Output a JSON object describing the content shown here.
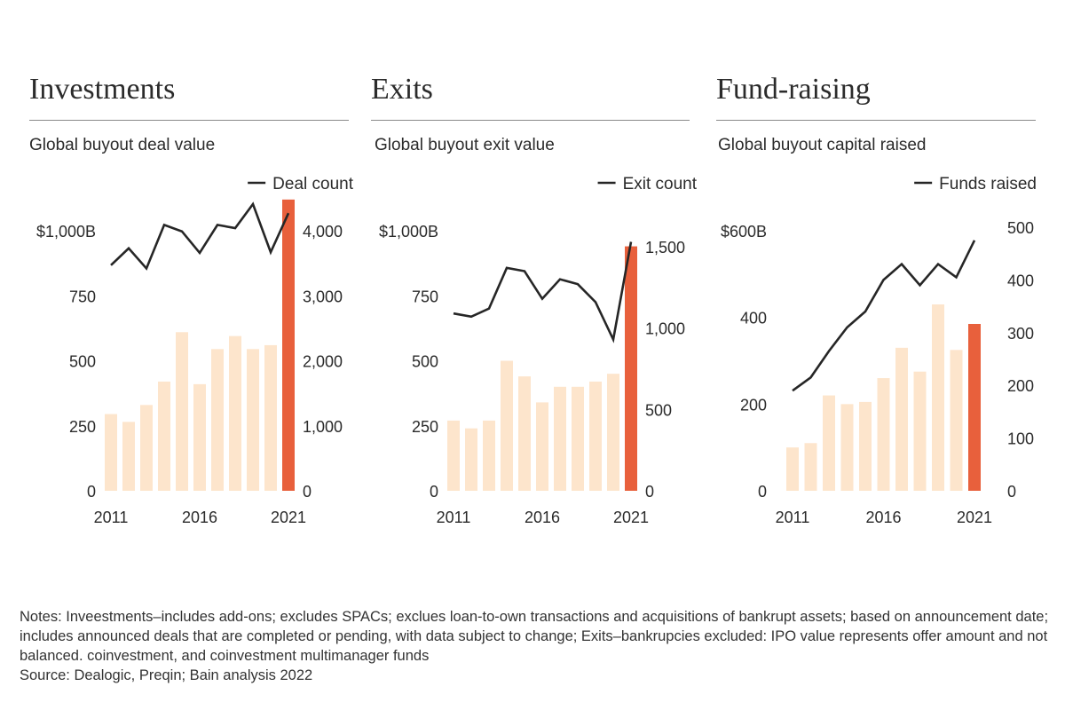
{
  "colors": {
    "bar": "#fde5cc",
    "bar_highlight": "#e8603c",
    "line": "#262626",
    "text": "#2b2b2b"
  },
  "notes": {
    "text": "Notes: Inveestments–includes add-ons; excludes SPACs; exclues loan-to-own transactions and acquisitions of bankrupt assets; based on announcement date; includes announced deals that are completed or pending, with data subject to change; Exits–bankrupcies excluded: IPO value represents offer amount and not balanced. coinvestment, and coinvestment multimanager funds",
    "source": "Source: Dealogic, Preqin; Bain analysis 2022"
  },
  "chart_data": [
    {
      "type": "bar",
      "title": "Investments",
      "subtitle": "Global buyout deal value",
      "legend_label": "Deal count",
      "years": [
        2011,
        2012,
        2013,
        2014,
        2015,
        2016,
        2017,
        2018,
        2019,
        2020,
        2021
      ],
      "x_tick_labels": [
        "2011",
        "2016",
        "2021"
      ],
      "left_axis": {
        "ylim": [
          0,
          1000
        ],
        "ticks": [
          0,
          250,
          500,
          750,
          1000
        ],
        "tick_labels": [
          "0",
          "250",
          "500",
          "750",
          "$1,000B"
        ]
      },
      "right_axis": {
        "ylim": [
          0,
          4000
        ],
        "ticks": [
          0,
          1000,
          2000,
          3000,
          4000
        ],
        "tick_labels": [
          "0",
          "1,000",
          "2,000",
          "3,000",
          "4,000"
        ]
      },
      "series": [
        {
          "name": "Global buyout deal value",
          "type": "bar",
          "axis": "left",
          "values": [
            295,
            265,
            330,
            420,
            610,
            410,
            545,
            595,
            545,
            560,
            1120
          ],
          "highlight_last": true
        },
        {
          "name": "Deal count",
          "type": "line",
          "axis": "right",
          "values": [
            3470,
            3730,
            3420,
            4090,
            3990,
            3660,
            4090,
            4040,
            4410,
            3670,
            4270
          ]
        }
      ]
    },
    {
      "type": "bar",
      "title": "Exits",
      "subtitle": "Global buyout exit value",
      "legend_label": "Exit count",
      "years": [
        2011,
        2012,
        2013,
        2014,
        2015,
        2016,
        2017,
        2018,
        2019,
        2020,
        2021
      ],
      "x_tick_labels": [
        "2011",
        "2016",
        "2021"
      ],
      "left_axis": {
        "ylim": [
          0,
          1000
        ],
        "ticks": [
          0,
          250,
          500,
          750,
          1000
        ],
        "tick_labels": [
          "0",
          "250",
          "500",
          "750",
          "$1,000B"
        ]
      },
      "right_axis": {
        "ylim": [
          0,
          1500
        ],
        "ticks": [
          0,
          500,
          1000,
          1500
        ],
        "tick_labels": [
          "0",
          "500",
          "1,000",
          "1,500"
        ]
      },
      "series": [
        {
          "name": "Global buyout exit value",
          "type": "bar",
          "axis": "left",
          "values": [
            270,
            240,
            270,
            500,
            440,
            340,
            400,
            400,
            420,
            450,
            940
          ],
          "highlight_last": true
        },
        {
          "name": "Exit count",
          "type": "line",
          "axis": "right",
          "values": [
            1090,
            1070,
            1120,
            1370,
            1350,
            1180,
            1300,
            1270,
            1160,
            930,
            1530
          ]
        }
      ]
    },
    {
      "type": "bar",
      "title": "Fund-raising",
      "subtitle": "Global buyout capital raised",
      "legend_label": "Funds raised",
      "years": [
        2011,
        2012,
        2013,
        2014,
        2015,
        2016,
        2017,
        2018,
        2019,
        2020,
        2021
      ],
      "x_tick_labels": [
        "2011",
        "2016",
        "2021"
      ],
      "left_axis": {
        "ylim": [
          0,
          600
        ],
        "ticks": [
          0,
          200,
          400,
          600
        ],
        "tick_labels": [
          "0",
          "200",
          "400",
          "$600B"
        ]
      },
      "right_axis": {
        "ylim": [
          0,
          500
        ],
        "ticks": [
          0,
          100,
          200,
          300,
          400,
          500
        ],
        "tick_labels": [
          "0",
          "100",
          "200",
          "300",
          "400",
          "500"
        ]
      },
      "series": [
        {
          "name": "Global buyout capital raised",
          "type": "bar",
          "axis": "left",
          "values": [
            100,
            110,
            220,
            200,
            205,
            260,
            330,
            275,
            430,
            325,
            385
          ],
          "highlight_last": true
        },
        {
          "name": "Funds raised",
          "type": "line",
          "axis": "right",
          "values": [
            190,
            215,
            265,
            310,
            340,
            400,
            430,
            390,
            430,
            405,
            475
          ]
        }
      ]
    }
  ]
}
